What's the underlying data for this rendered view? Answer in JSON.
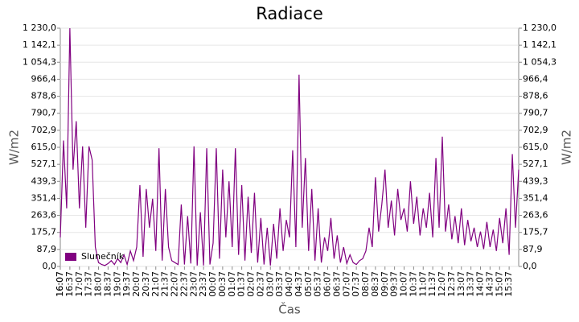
{
  "chart_data": {
    "type": "line",
    "title": "Radiace",
    "x_label": "Čas",
    "y_label": "W/m2",
    "x": [
      "16:07",
      "16:17",
      "16:27",
      "16:37",
      "16:47",
      "16:57",
      "17:07",
      "17:17",
      "17:27",
      "17:37",
      "17:47",
      "17:57",
      "18:07",
      "18:17",
      "18:27",
      "18:37",
      "18:47",
      "18:57",
      "19:07",
      "19:17",
      "19:27",
      "19:37",
      "19:47",
      "19:57",
      "20:07",
      "20:17",
      "20:27",
      "20:37",
      "20:47",
      "20:57",
      "21:07",
      "21:17",
      "21:27",
      "21:37",
      "21:47",
      "21:57",
      "22:07",
      "22:17",
      "22:27",
      "22:37",
      "22:47",
      "22:57",
      "23:07",
      "23:17",
      "23:27",
      "23:37",
      "23:47",
      "23:57",
      "00:07",
      "00:17",
      "00:27",
      "00:37",
      "00:47",
      "00:57",
      "01:07",
      "01:17",
      "01:27",
      "01:37",
      "01:47",
      "01:57",
      "02:07",
      "02:17",
      "02:27",
      "02:37",
      "02:47",
      "02:57",
      "03:07",
      "03:17",
      "03:27",
      "03:37",
      "03:47",
      "03:57",
      "04:07",
      "04:17",
      "04:27",
      "04:37",
      "04:47",
      "04:57",
      "05:07",
      "05:17",
      "05:27",
      "05:37",
      "05:47",
      "05:57",
      "06:07",
      "06:17",
      "06:27",
      "06:37",
      "06:47",
      "06:57",
      "07:07",
      "07:17",
      "07:27",
      "07:37",
      "07:47",
      "07:57",
      "08:07",
      "08:17",
      "08:27",
      "08:37",
      "08:47",
      "08:57",
      "09:07",
      "09:17",
      "09:27",
      "09:37",
      "09:47",
      "09:57",
      "10:07",
      "10:17",
      "10:27",
      "10:37",
      "10:47",
      "10:57",
      "11:07",
      "11:17",
      "11:27",
      "11:37",
      "11:47",
      "11:57",
      "12:07",
      "12:17",
      "12:27",
      "12:37",
      "12:47",
      "12:57",
      "13:07",
      "13:17",
      "13:27",
      "13:37",
      "13:47",
      "13:57",
      "14:07",
      "14:17",
      "14:27",
      "14:37",
      "14:47",
      "14:57",
      "15:07",
      "15:17",
      "15:27",
      "15:37",
      "15:47",
      "15:57",
      "16:07"
    ],
    "xticks": [
      "16:07",
      "16:37",
      "17:07",
      "17:37",
      "18:07",
      "18:37",
      "19:07",
      "19:37",
      "20:07",
      "20:37",
      "21:07",
      "21:37",
      "22:07",
      "22:37",
      "23:07",
      "23:37",
      "00:07",
      "00:37",
      "01:07",
      "01:37",
      "02:07",
      "02:37",
      "03:07",
      "03:37",
      "04:07",
      "04:37",
      "05:07",
      "05:37",
      "06:07",
      "06:37",
      "07:07",
      "07:37",
      "08:07",
      "08:37",
      "09:07",
      "09:37",
      "10:07",
      "10:37",
      "11:07",
      "11:37",
      "12:07",
      "12:37",
      "13:07",
      "13:37",
      "14:07",
      "14:37",
      "15:07",
      "15:37",
      "16:07"
    ],
    "series": [
      {
        "name": "Slunečník",
        "color": "#800080",
        "values": [
          150,
          650,
          300,
          1230,
          500,
          750,
          300,
          620,
          200,
          620,
          550,
          100,
          20,
          10,
          5,
          15,
          30,
          10,
          40,
          20,
          60,
          10,
          80,
          30,
          100,
          420,
          50,
          400,
          200,
          350,
          80,
          610,
          30,
          400,
          100,
          30,
          20,
          10,
          320,
          10,
          260,
          15,
          620,
          5,
          280,
          5,
          610,
          10,
          120,
          610,
          40,
          500,
          150,
          440,
          100,
          610,
          60,
          420,
          30,
          360,
          70,
          380,
          20,
          250,
          10,
          200,
          5,
          220,
          40,
          300,
          80,
          240,
          150,
          600,
          100,
          990,
          200,
          560,
          80,
          400,
          30,
          300,
          20,
          150,
          80,
          250,
          40,
          160,
          20,
          100,
          15,
          60,
          20,
          10,
          30,
          40,
          80,
          200,
          100,
          460,
          180,
          320,
          500,
          200,
          340,
          160,
          400,
          240,
          300,
          180,
          440,
          220,
          360,
          160,
          300,
          200,
          380,
          150,
          560,
          200,
          670,
          180,
          320,
          140,
          260,
          120,
          300,
          110,
          240,
          130,
          200,
          100,
          180,
          90,
          230,
          100,
          190,
          80,
          250,
          120,
          300,
          60,
          580,
          200,
          500
        ]
      }
    ],
    "ylim": [
      0,
      1230
    ],
    "yticks": [
      {
        "value": 0,
        "label": "0,0"
      },
      {
        "value": 87.9,
        "label": "87,9"
      },
      {
        "value": 175.7,
        "label": "175,7"
      },
      {
        "value": 263.6,
        "label": "263,6"
      },
      {
        "value": 351.4,
        "label": "351,4"
      },
      {
        "value": 439.3,
        "label": "439,3"
      },
      {
        "value": 527.1,
        "label": "527,1"
      },
      {
        "value": 615,
        "label": "615,0"
      },
      {
        "value": 702.9,
        "label": "702,9"
      },
      {
        "value": 790.7,
        "label": "790,7"
      },
      {
        "value": 878.6,
        "label": "878,6"
      },
      {
        "value": 966.4,
        "label": "966,4"
      },
      {
        "value": 1054.3,
        "label": "1 054,3"
      },
      {
        "value": 1142.1,
        "label": "1 142,1"
      },
      {
        "value": 1230,
        "label": "1 230,0"
      }
    ],
    "grid": true,
    "legend": "lower left"
  }
}
